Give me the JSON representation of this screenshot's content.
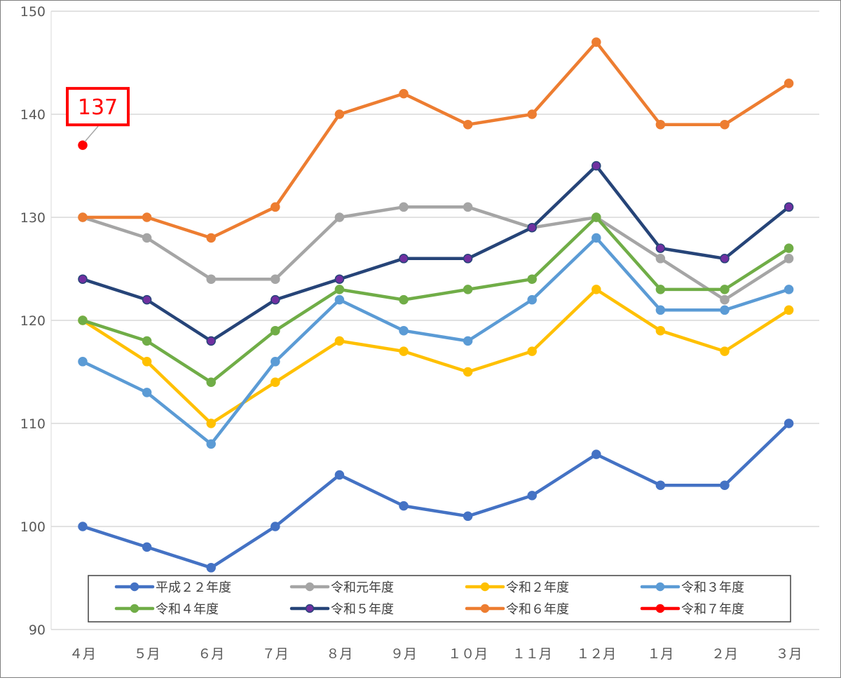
{
  "chart_data": {
    "type": "line",
    "title": "",
    "xlabel": "",
    "ylabel": "",
    "ylim": [
      90,
      150
    ],
    "yticks": [
      "90",
      "100",
      "110",
      "120",
      "130",
      "140",
      "150"
    ],
    "categories": [
      "４月",
      "５月",
      "６月",
      "７月",
      "８月",
      "９月",
      "１０月",
      "１１月",
      "１２月",
      "１月",
      "２月",
      "３月"
    ],
    "grid": true,
    "legend_position": "bottom",
    "series": [
      {
        "name": "平成２２年度",
        "color": "#4472c4",
        "marker": "#4472c4",
        "values": [
          100,
          98,
          96,
          100,
          105,
          102,
          101,
          103,
          107,
          104,
          104,
          110
        ]
      },
      {
        "name": "令和元年度",
        "color": "#a5a5a5",
        "marker": "#a5a5a5",
        "values": [
          130,
          128,
          124,
          124,
          130,
          131,
          131,
          129,
          130,
          126,
          122,
          126
        ]
      },
      {
        "name": "令和２年度",
        "color": "#ffc000",
        "marker": "#ffc000",
        "values": [
          120,
          116,
          110,
          114,
          118,
          117,
          115,
          117,
          123,
          119,
          117,
          121
        ]
      },
      {
        "name": "令和３年度",
        "color": "#5b9bd5",
        "marker": "#5b9bd5",
        "values": [
          116,
          113,
          108,
          116,
          122,
          119,
          118,
          122,
          128,
          121,
          121,
          123
        ]
      },
      {
        "name": "令和４年度",
        "color": "#70ad47",
        "marker": "#70ad47",
        "values": [
          120,
          118,
          114,
          119,
          123,
          122,
          123,
          124,
          130,
          123,
          123,
          127
        ]
      },
      {
        "name": "令和５年度",
        "color": "#264478",
        "marker": "#7030a0",
        "values": [
          124,
          122,
          118,
          122,
          124,
          126,
          126,
          129,
          135,
          127,
          126,
          131
        ]
      },
      {
        "name": "令和６年度",
        "color": "#ed7d31",
        "marker": "#ed7d31",
        "values": [
          130,
          130,
          128,
          131,
          140,
          142,
          139,
          140,
          147,
          139,
          139,
          143
        ]
      },
      {
        "name": "令和７年度",
        "color": "#ff0000",
        "marker": "#ff0000",
        "values": [
          137,
          null,
          null,
          null,
          null,
          null,
          null,
          null,
          null,
          null,
          null,
          null
        ]
      }
    ],
    "annotations": [
      {
        "text": "137",
        "series": "令和７年度",
        "category": "４月",
        "color": "#ff0000"
      }
    ]
  }
}
